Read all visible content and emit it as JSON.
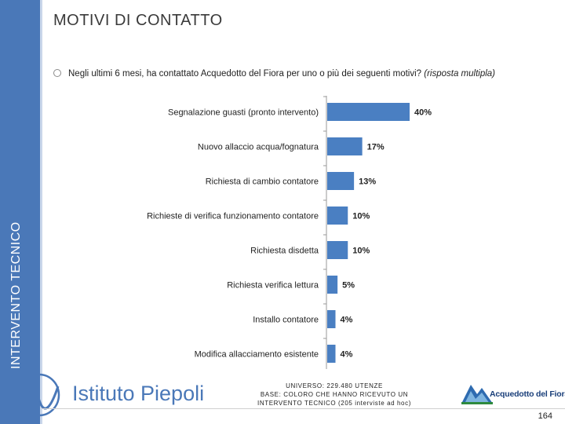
{
  "page": {
    "title": "MOTIVI DI CONTATTO",
    "side_label": "INTERVENTO TECNICO",
    "question_main": "Negli ultimi 6 mesi, ha contattato Acquedotto del Fiora per uno o più dei seguenti motivi?",
    "question_note": "(risposta multipla)",
    "base_lines": [
      "UNIVERSO: 229.480 UTENZE",
      "BASE: COLORO CHE HANNO RICEVUTO UN",
      "INTERVENTO TECNICO (205 interviste ad hoc)"
    ],
    "logo_left": "Istituto Piepoli",
    "logo_right": "Acquedotto del Fiora",
    "page_number": "164"
  },
  "colors": {
    "bar": "#4a7fc2",
    "sidebar": "#4a78b8",
    "axis": "#9a9a9a"
  },
  "chart_data": {
    "type": "bar",
    "orientation": "horizontal",
    "categories": [
      "Segnalazione guasti (pronto intervento)",
      "Nuovo allaccio acqua/fognatura",
      "Richiesta di cambio contatore",
      "Richieste di verifica funzionamento contatore",
      "Richiesta disdetta",
      "Richiesta verifica lettura",
      "Installo contatore",
      "Modifica allacciamento esistente"
    ],
    "values": [
      40,
      17,
      13,
      10,
      10,
      5,
      4,
      4
    ],
    "value_labels": [
      "40%",
      "17%",
      "13%",
      "10%",
      "10%",
      "5%",
      "4%",
      "4%"
    ],
    "xlim": [
      0,
      45
    ],
    "grid": false,
    "legend": "none"
  }
}
